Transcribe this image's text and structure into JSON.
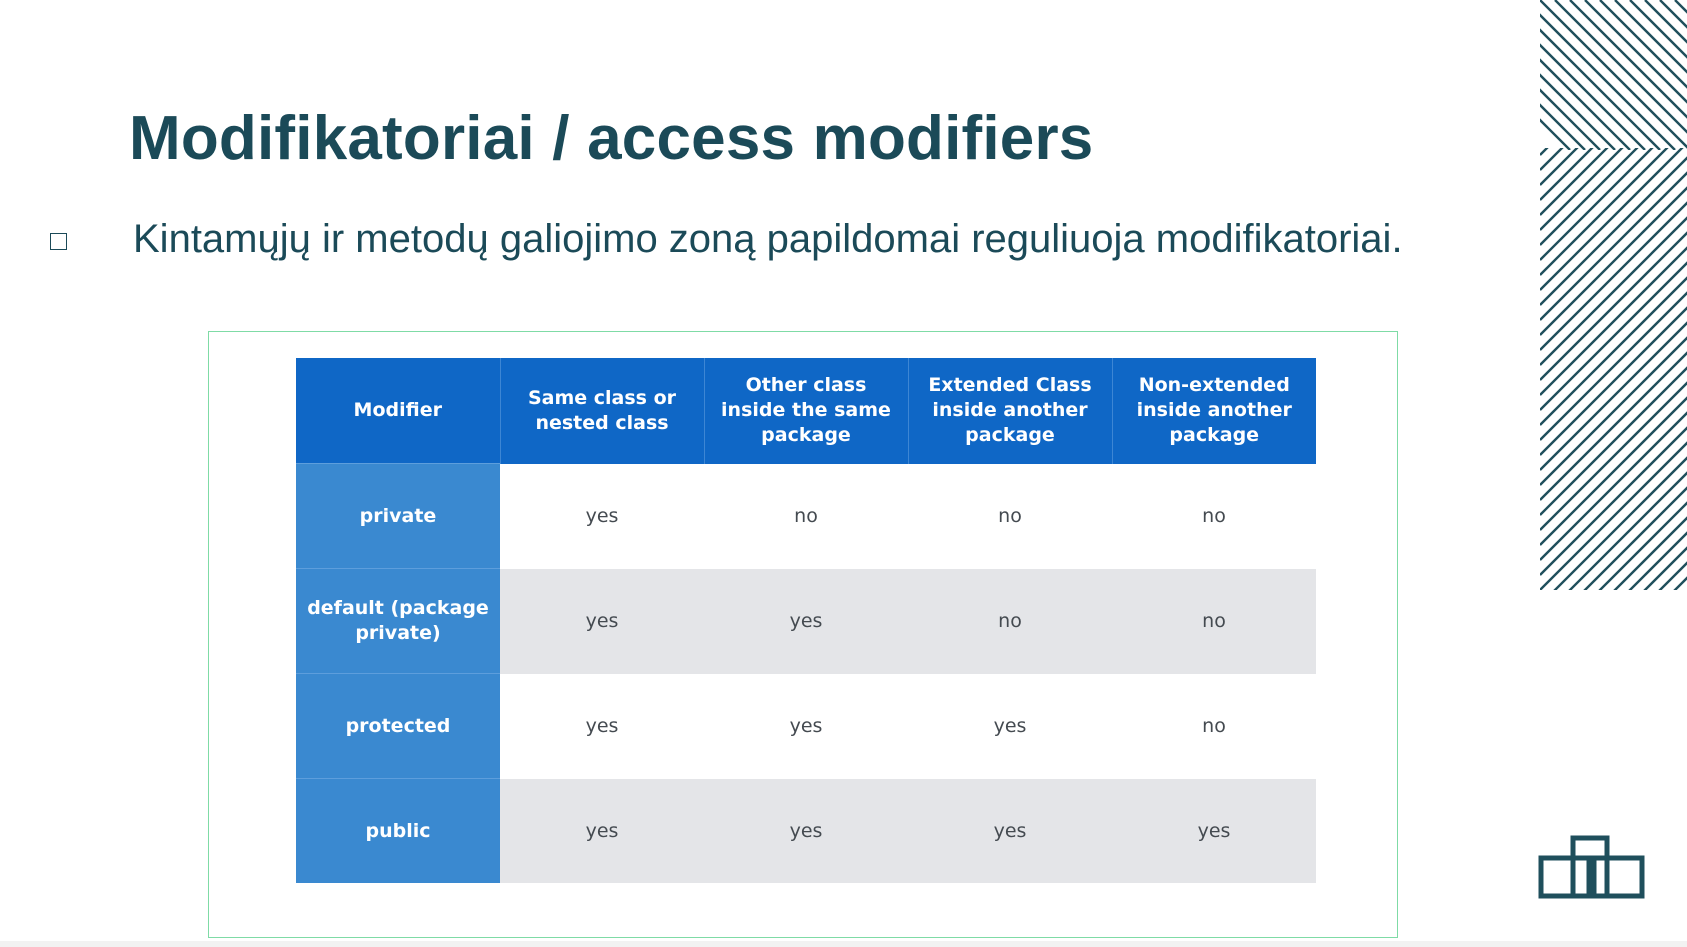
{
  "slide": {
    "title": "Modifikatoriai / access modifiers",
    "bullet": "Kintamųjų ir metodų galiojimo zoną papildomai reguliuoja modifikatoriai."
  },
  "table": {
    "headers": [
      "Modifier",
      "Same class or nested class",
      "Other class inside the same package",
      "Extended Class inside another package",
      "Non-extended inside another package"
    ],
    "rows": [
      {
        "modifier": "private",
        "cells": [
          "yes",
          "no",
          "no",
          "no"
        ]
      },
      {
        "modifier": "default (package private)",
        "cells": [
          "yes",
          "yes",
          "no",
          "no"
        ]
      },
      {
        "modifier": "protected",
        "cells": [
          "yes",
          "yes",
          "yes",
          "no"
        ]
      },
      {
        "modifier": "public",
        "cells": [
          "yes",
          "yes",
          "yes",
          "yes"
        ]
      }
    ]
  },
  "colors": {
    "title": "#1b4a58",
    "header_bg": "#0f67c6",
    "modifier_bg": "#3a89d0",
    "frame_border": "#7fdba6",
    "grey_row": "#e4e5e8"
  },
  "icons": [
    "diagonal-stripes-decoration",
    "overlapping-boxes-logo-icon"
  ]
}
